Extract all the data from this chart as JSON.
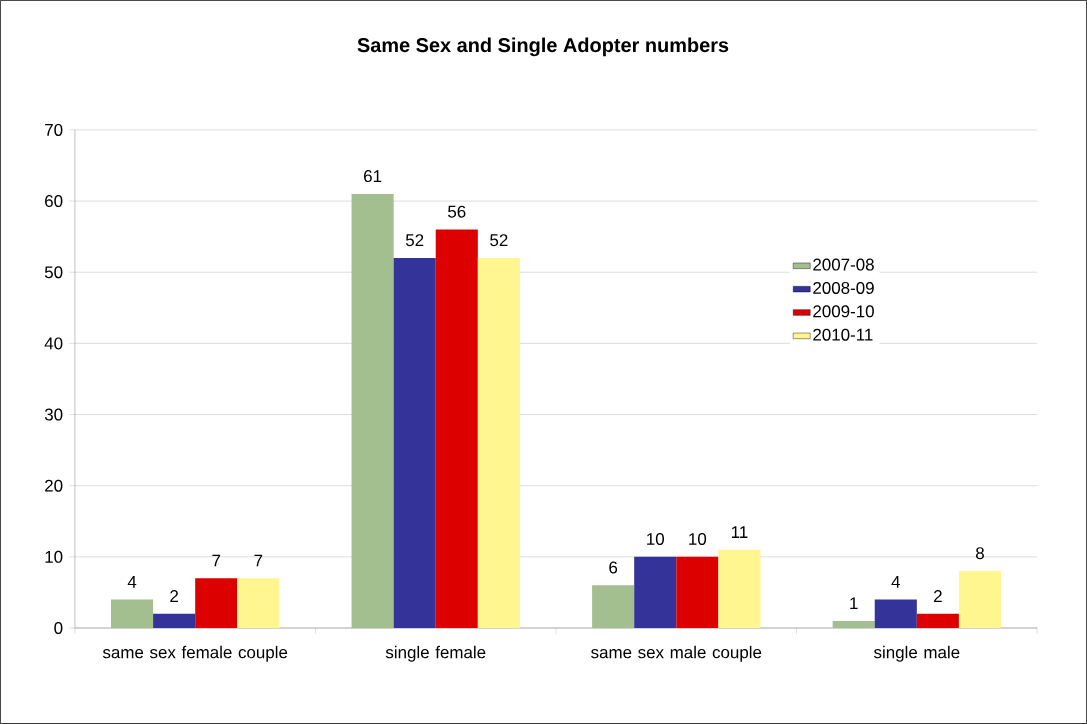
{
  "chart_data": {
    "type": "bar",
    "title": "Same Sex and Single Adopter numbers",
    "categories": [
      "same sex female couple",
      "single female",
      "same sex male couple",
      "single male"
    ],
    "series": [
      {
        "name": "2007-08",
        "color": "#a3be8f",
        "values": [
          4,
          61,
          6,
          1
        ]
      },
      {
        "name": "2008-09",
        "color": "#333399",
        "values": [
          2,
          52,
          10,
          4
        ]
      },
      {
        "name": "2009-10",
        "color": "#dd0000",
        "values": [
          7,
          56,
          10,
          2
        ]
      },
      {
        "name": "2010-11",
        "color": "#fff68f",
        "values": [
          7,
          52,
          11,
          8
        ]
      }
    ],
    "ylim": [
      0,
      70
    ],
    "yticks": [
      0,
      10,
      20,
      30,
      40,
      50,
      60,
      70
    ],
    "grid": "y",
    "legend": "right",
    "data_labels": true
  }
}
